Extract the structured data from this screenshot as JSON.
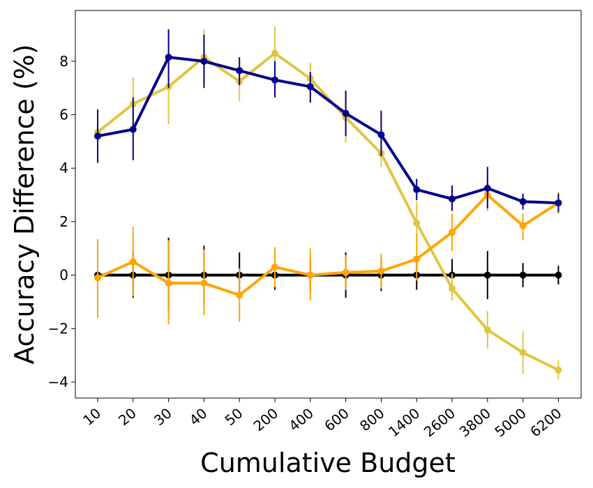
{
  "chart_data": {
    "type": "line",
    "title": "",
    "xlabel": "Cumulative Budget",
    "ylabel": "Accuracy Difference (%)",
    "categories": [
      "10",
      "20",
      "30",
      "40",
      "50",
      "200",
      "400",
      "600",
      "800",
      "1400",
      "2600",
      "3800",
      "5000",
      "6200"
    ],
    "ylim": [
      -4.6,
      9.9
    ],
    "yticks": [
      -4,
      -2,
      0,
      2,
      4,
      6,
      8
    ],
    "ytick_labels": [
      "−4",
      "−2",
      "0",
      "2",
      "4",
      "6",
      "8"
    ],
    "grid": false,
    "legend": "none",
    "series": [
      {
        "name": "baseline",
        "color": "#000000",
        "values": [
          0,
          0,
          0,
          0,
          0,
          0,
          0,
          0,
          0,
          0,
          0,
          0,
          0,
          0
        ],
        "err_low": [
          -0.8,
          -0.85,
          -1.3,
          -1.1,
          -0.85,
          -0.55,
          -0.6,
          -0.85,
          -0.6,
          -0.55,
          -0.6,
          -0.9,
          -0.45,
          -0.35
        ],
        "err_high": [
          0.8,
          0.85,
          1.4,
          1.1,
          0.85,
          0.55,
          0.6,
          0.85,
          0.6,
          0.55,
          0.6,
          0.9,
          0.45,
          0.35
        ]
      },
      {
        "name": "yellow",
        "color": "#e1c542",
        "values": [
          5.35,
          6.4,
          7.05,
          8.15,
          7.25,
          8.3,
          7.35,
          5.9,
          4.55,
          1.95,
          -0.5,
          -2.05,
          -2.9,
          -3.55
        ],
        "err_low": [
          4.35,
          5.35,
          5.65,
          7.05,
          6.5,
          7.35,
          6.75,
          4.95,
          4.05,
          1.25,
          -0.95,
          -2.75,
          -3.7,
          -3.9
        ],
        "err_high": [
          6.2,
          7.4,
          8.4,
          9.2,
          8.0,
          9.3,
          7.95,
          6.85,
          5.1,
          2.75,
          0.05,
          -1.35,
          -2.1,
          -3.2
        ]
      },
      {
        "name": "orange",
        "color": "#ffa500",
        "values": [
          -0.1,
          0.5,
          -0.3,
          -0.3,
          -0.75,
          0.3,
          0.0,
          0.1,
          0.15,
          0.6,
          1.6,
          3.0,
          1.85,
          2.7
        ],
        "err_low": [
          -1.6,
          -0.8,
          -1.85,
          -1.5,
          -1.75,
          -0.45,
          -0.95,
          -0.55,
          -0.5,
          -0.2,
          0.9,
          2.4,
          1.3,
          2.3
        ],
        "err_high": [
          1.35,
          1.8,
          1.3,
          0.95,
          0.25,
          1.05,
          1.0,
          0.75,
          0.8,
          1.55,
          2.3,
          3.6,
          2.3,
          3.1
        ]
      },
      {
        "name": "navy",
        "color": "#00008b",
        "values": [
          5.2,
          5.45,
          8.15,
          8.0,
          7.65,
          7.3,
          7.05,
          6.05,
          5.25,
          3.2,
          2.85,
          3.25,
          2.75,
          2.7
        ],
        "err_low": [
          4.2,
          4.3,
          7.0,
          7.0,
          7.1,
          6.65,
          6.45,
          5.2,
          4.45,
          2.8,
          2.4,
          2.5,
          2.45,
          2.35
        ],
        "err_high": [
          6.2,
          6.65,
          9.2,
          9.0,
          8.15,
          8.0,
          7.6,
          6.9,
          6.15,
          3.6,
          3.35,
          4.05,
          3.05,
          3.05
        ]
      }
    ]
  }
}
